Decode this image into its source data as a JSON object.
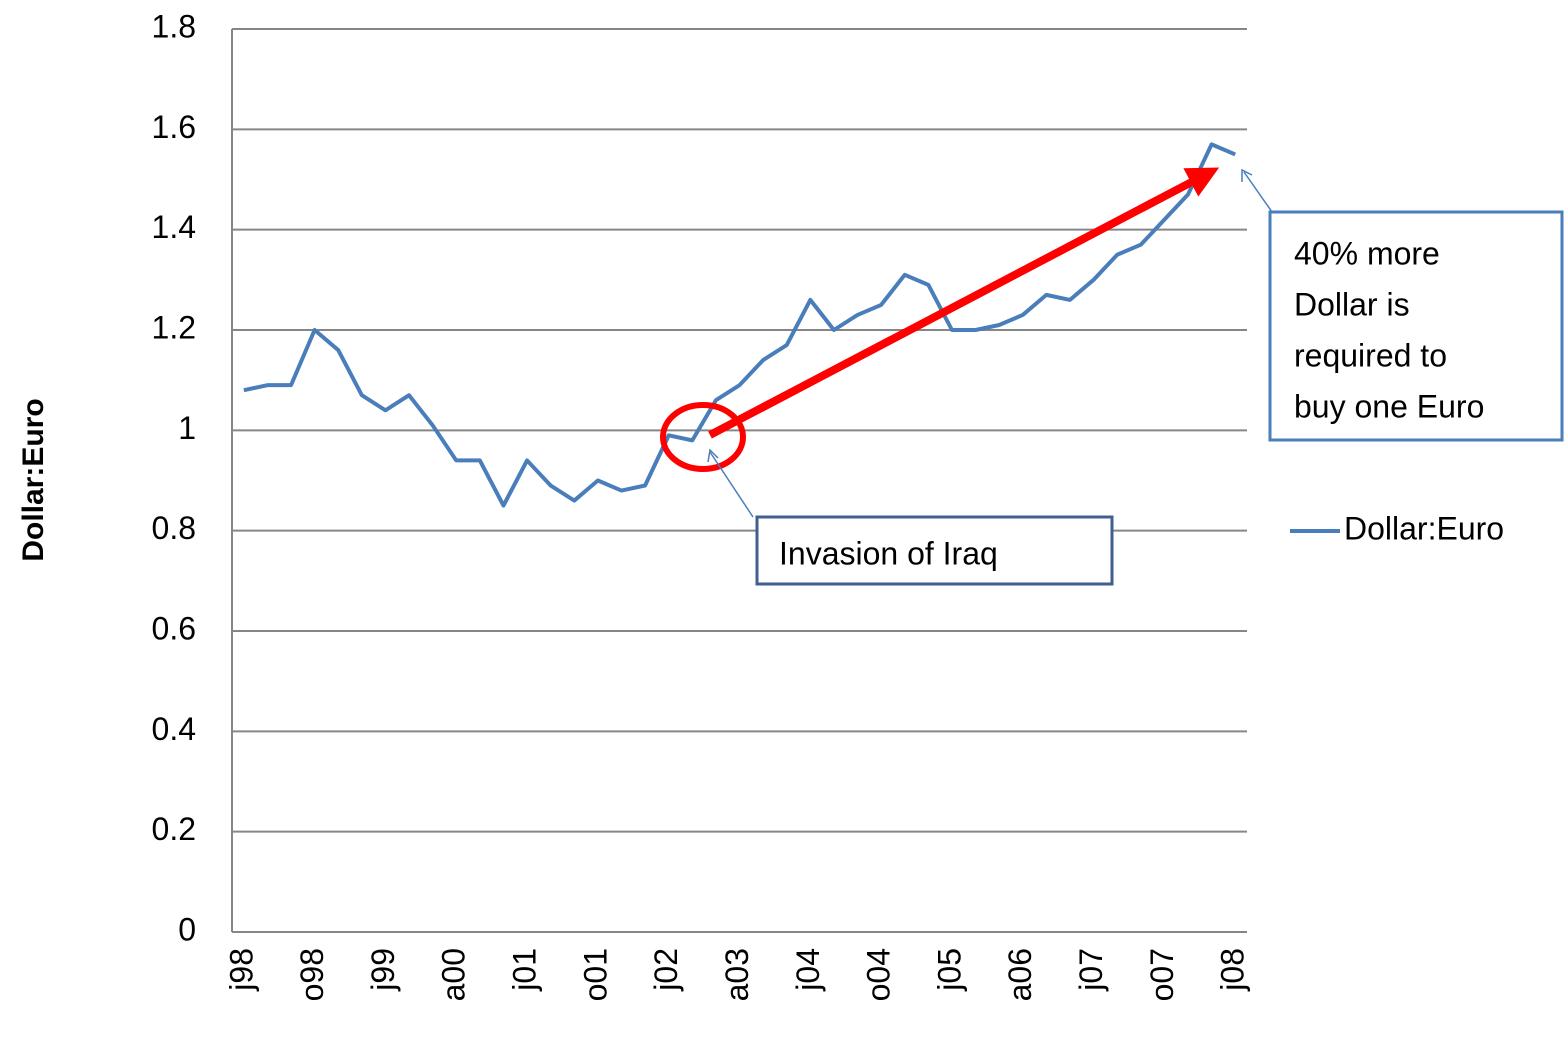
{
  "chart_data": {
    "type": "line",
    "y_label": "Dollar:Euro",
    "categories": [
      "j98",
      null,
      null,
      "o98",
      null,
      null,
      "j99",
      null,
      null,
      "a00",
      null,
      null,
      "j01",
      null,
      null,
      "o01",
      null,
      null,
      "j02",
      null,
      null,
      "a03",
      null,
      null,
      "j04",
      null,
      null,
      "o04",
      null,
      null,
      "j05",
      null,
      null,
      "a06",
      null,
      null,
      "j07",
      null,
      null,
      "o07",
      null,
      null,
      "j08"
    ],
    "series": [
      {
        "name": "Dollar:Euro",
        "color": "#4a7ebb",
        "values": [
          1.08,
          1.09,
          1.09,
          1.2,
          1.16,
          1.07,
          1.04,
          1.07,
          1.01,
          0.94,
          0.94,
          0.85,
          0.94,
          0.89,
          0.86,
          0.9,
          0.88,
          0.89,
          0.99,
          0.98,
          1.06,
          1.09,
          1.14,
          1.17,
          1.26,
          1.2,
          1.23,
          1.25,
          1.31,
          1.29,
          1.2,
          1.2,
          1.21,
          1.23,
          1.27,
          1.26,
          1.3,
          1.35,
          1.37,
          1.42,
          1.47,
          1.57,
          1.55
        ]
      }
    ],
    "ylim": [
      0,
      1.8
    ],
    "yticks": [
      0,
      0.2,
      0.4,
      0.6,
      0.8,
      1,
      1.2,
      1.4,
      1.6,
      1.8
    ],
    "grid": true,
    "legend": "right",
    "annotations": [
      {
        "text": "Invasion of Iraq"
      },
      {
        "lines": [
          "40% more",
          "Dollar is",
          "required to",
          "buy one Euro"
        ]
      }
    ]
  }
}
